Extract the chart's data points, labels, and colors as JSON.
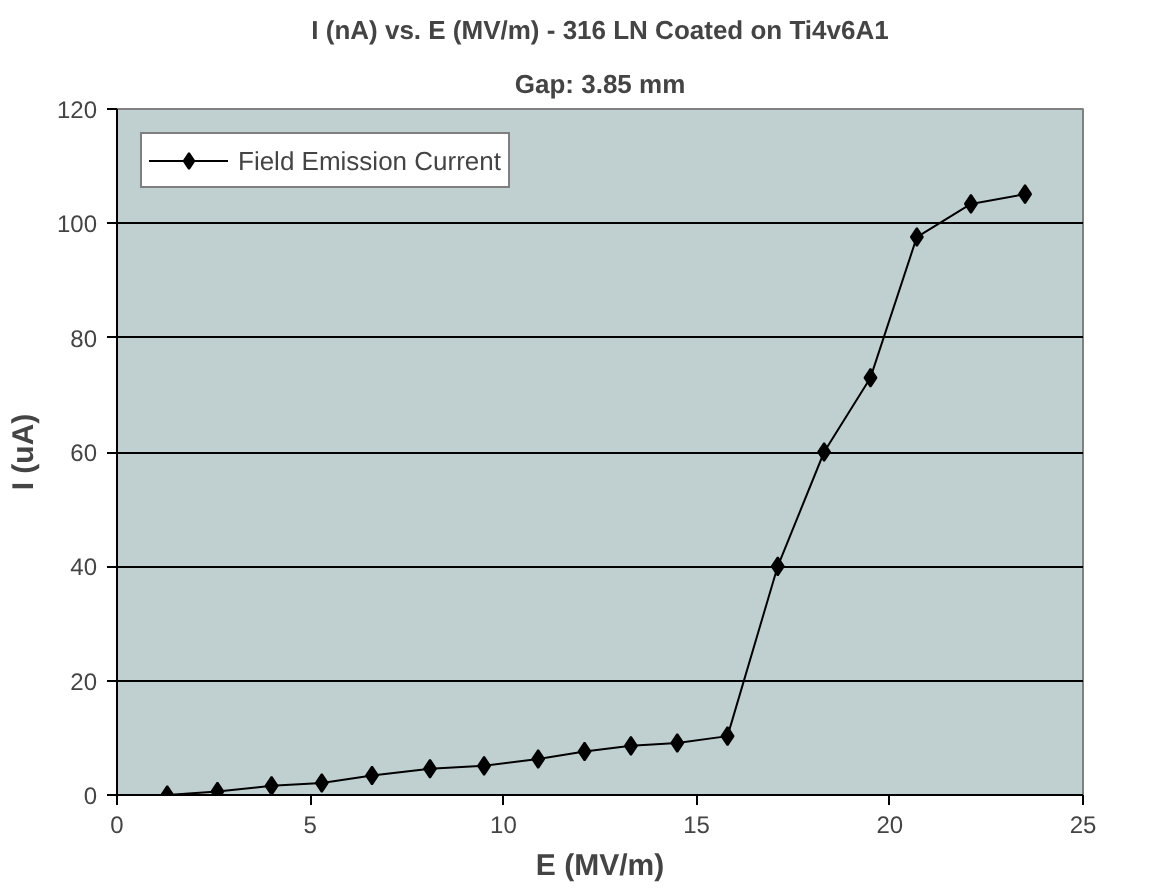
{
  "chart_data": {
    "type": "line",
    "title": "I (nA) vs. E (MV/m) - 316 LN Coated on Ti4v6A1",
    "subtitle": "Gap: 3.85 mm",
    "xlabel": "E (MV/m)",
    "ylabel": "I (uA)",
    "x": [
      1.3,
      2.6,
      4.0,
      5.3,
      6.6,
      8.1,
      9.5,
      10.9,
      12.1,
      13.3,
      14.5,
      15.8,
      17.1,
      18.3,
      19.5,
      20.7,
      22.1,
      23.5
    ],
    "series": [
      {
        "name": "Field Emission Current",
        "color": "#000000",
        "values": [
          0,
          0.6,
          1.6,
          2.1,
          3.4,
          4.6,
          5.1,
          6.3,
          7.6,
          8.6,
          9.1,
          10.3,
          40,
          60,
          73,
          97.6,
          103.4,
          105.1
        ]
      }
    ],
    "xlim": [
      0,
      25
    ],
    "ylim": [
      0,
      120
    ],
    "xticks": [
      0,
      5,
      10,
      15,
      20,
      25
    ],
    "yticks": [
      0,
      20,
      40,
      60,
      80,
      100,
      120
    ],
    "grid": "y",
    "legend": "top left",
    "marker": "diamond",
    "line_style": "solid"
  }
}
